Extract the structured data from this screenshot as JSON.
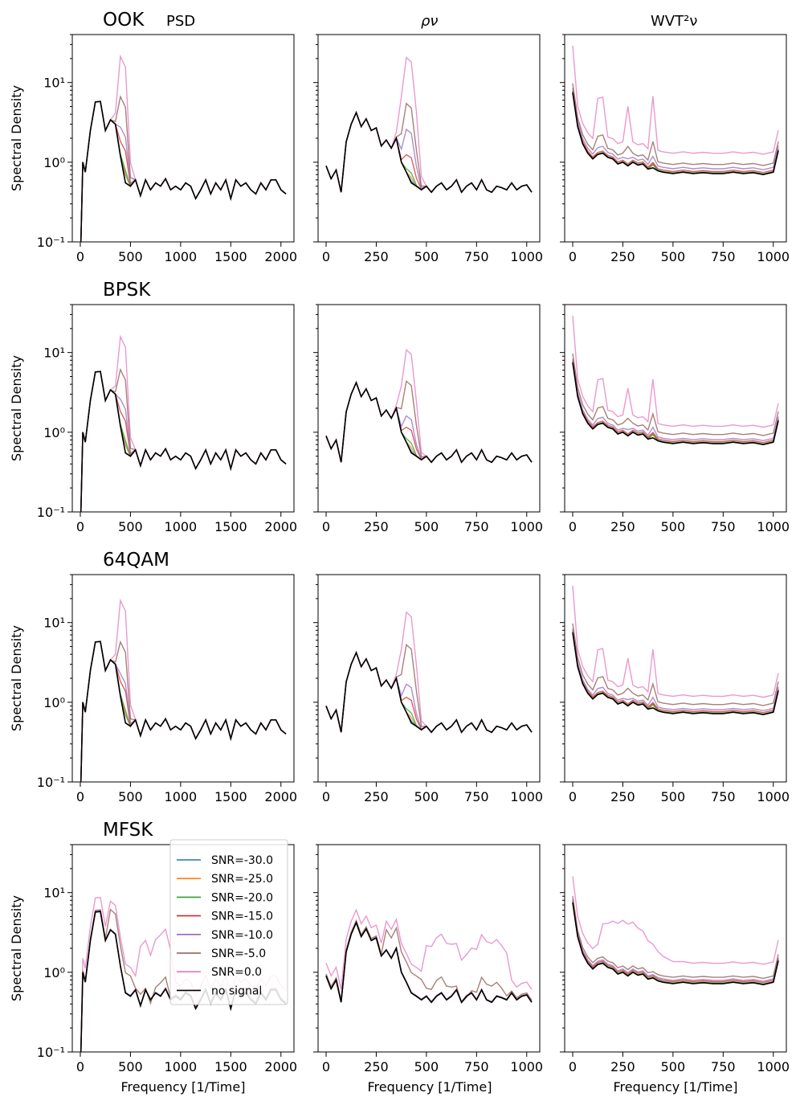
{
  "column_titles": [
    "PSD",
    "ρν",
    "WVT²ν"
  ],
  "row_titles": [
    "OOK",
    "BPSK",
    "64QAM",
    "MFSK"
  ],
  "ylabel": "Spectral Density",
  "xlabel": "Frequency [1/Time]",
  "legend": {
    "placement": "inside, upper-right of bottom-left panel",
    "entries": [
      {
        "label": "SNR=-30.0",
        "color": "#1f77b4"
      },
      {
        "label": "SNR=-25.0",
        "color": "#ff7f0e"
      },
      {
        "label": "SNR=-20.0",
        "color": "#2ca02c"
      },
      {
        "label": "SNR=-15.0",
        "color": "#d62728"
      },
      {
        "label": "SNR=-10.0",
        "color": "#9467bd"
      },
      {
        "label": "SNR=-5.0",
        "color": "#8c564b"
      },
      {
        "label": "SNR=0.0",
        "color": "#e377c2"
      },
      {
        "label": "no signal",
        "color": "#000000"
      }
    ]
  },
  "chart_data": {
    "type": "line",
    "yscale": "log",
    "ylim": [
      0.1,
      40
    ],
    "yticks": [
      {
        "value": 0.1,
        "label": "10⁻¹"
      },
      {
        "value": 1,
        "label": "10⁰"
      },
      {
        "value": 10,
        "label": "10¹"
      }
    ],
    "columns": [
      {
        "key": "PSD",
        "xlim": [
          -80,
          2130
        ],
        "xticks": [
          0,
          500,
          1000,
          1500,
          2000
        ]
      },
      {
        "key": "rho",
        "xlim": [
          -40,
          1065
        ],
        "xticks": [
          0,
          250,
          500,
          750,
          1000
        ]
      },
      {
        "key": "WVT",
        "xlim": [
          -40,
          1065
        ],
        "xticks": [
          0,
          250,
          500,
          750,
          1000
        ]
      }
    ],
    "baseline": {
      "PSD": {
        "x": [
          0,
          25,
          50,
          100,
          150,
          200,
          250,
          300,
          350,
          400,
          450,
          500,
          550,
          600,
          650,
          700,
          750,
          800,
          850,
          900,
          950,
          1000,
          1050,
          1100,
          1150,
          1200,
          1250,
          1300,
          1350,
          1400,
          1450,
          1500,
          1550,
          1600,
          1650,
          1700,
          1750,
          1800,
          1850,
          1900,
          1950,
          2000,
          2050
        ],
        "y": [
          0.001,
          1.0,
          0.75,
          2.5,
          5.7,
          5.8,
          2.5,
          3.4,
          3.0,
          1.2,
          0.55,
          0.5,
          0.6,
          0.38,
          0.6,
          0.45,
          0.55,
          0.5,
          0.62,
          0.45,
          0.5,
          0.45,
          0.55,
          0.5,
          0.35,
          0.45,
          0.6,
          0.4,
          0.55,
          0.45,
          0.6,
          0.35,
          0.6,
          0.5,
          0.55,
          0.45,
          0.4,
          0.55,
          0.45,
          0.6,
          0.6,
          0.45,
          0.4
        ]
      },
      "rho": {
        "x": [
          0,
          25,
          50,
          75,
          100,
          125,
          150,
          175,
          200,
          225,
          250,
          275,
          300,
          325,
          350,
          375,
          400,
          425,
          450,
          475,
          500,
          525,
          550,
          575,
          600,
          625,
          650,
          675,
          700,
          725,
          750,
          775,
          800,
          825,
          850,
          875,
          900,
          925,
          950,
          975,
          1000,
          1025
        ],
        "y": [
          0.9,
          0.62,
          0.8,
          0.42,
          1.8,
          3.0,
          4.2,
          2.8,
          3.5,
          2.5,
          2.7,
          1.6,
          1.9,
          1.5,
          2.0,
          1.0,
          0.75,
          0.55,
          0.5,
          0.45,
          0.5,
          0.42,
          0.5,
          0.55,
          0.45,
          0.5,
          0.6,
          0.42,
          0.5,
          0.55,
          0.45,
          0.6,
          0.45,
          0.42,
          0.5,
          0.48,
          0.45,
          0.55,
          0.45,
          0.5,
          0.52,
          0.42
        ]
      },
      "WVT": {
        "x": [
          0,
          25,
          50,
          75,
          100,
          125,
          150,
          175,
          200,
          225,
          250,
          275,
          300,
          325,
          350,
          375,
          400,
          425,
          450,
          500,
          550,
          600,
          650,
          700,
          750,
          800,
          850,
          900,
          950,
          1000,
          1025
        ],
        "y": [
          7.5,
          2.8,
          1.7,
          1.3,
          1.1,
          1.25,
          1.3,
          1.15,
          1.1,
          0.95,
          1.0,
          0.9,
          1.0,
          0.92,
          0.95,
          0.82,
          0.85,
          0.78,
          0.75,
          0.72,
          0.75,
          0.72,
          0.74,
          0.72,
          0.72,
          0.75,
          0.72,
          0.74,
          0.7,
          0.75,
          1.4
        ]
      }
    },
    "rows": [
      {
        "name": "OOK",
        "PSD": {
          "peak_x": 420,
          "peaks": [
            1.0,
            1.05,
            1.3,
            2.0,
            3.2,
            8.2,
            27
          ]
        },
        "rho": {
          "peak_x": 410,
          "peaks": [
            0.6,
            0.7,
            0.85,
            1.3,
            2.8,
            6.0,
            23
          ]
        },
        "WVT": {
          "offsets": [
            1.0,
            1.0,
            1.02,
            1.06,
            1.15,
            1.3,
            1.8
          ],
          "peak_extra": [
            1,
            1,
            1,
            1,
            1.1,
            1.5,
            4.0
          ]
        }
      },
      {
        "name": "BPSK",
        "PSD": {
          "peak_x": 420,
          "peaks": [
            1.0,
            1.05,
            1.3,
            2.0,
            3.0,
            7.5,
            20
          ]
        },
        "rho": {
          "peak_x": 410,
          "peaks": [
            0.6,
            0.7,
            0.85,
            1.2,
            1.7,
            4.8,
            12
          ]
        },
        "WVT": {
          "offsets": [
            1.0,
            1.0,
            1.02,
            1.06,
            1.12,
            1.3,
            1.65
          ],
          "peak_extra": [
            1,
            1,
            1,
            1,
            1.1,
            1.4,
            3.0
          ]
        }
      },
      {
        "name": "64QAM",
        "PSD": {
          "peak_x": 420,
          "peaks": [
            1.0,
            1.05,
            1.3,
            2.0,
            2.6,
            7.0,
            24
          ]
        },
        "rho": {
          "peak_x": 410,
          "peaks": [
            0.6,
            0.7,
            0.85,
            1.2,
            1.8,
            5.8,
            15
          ]
        },
        "WVT": {
          "offsets": [
            1.0,
            1.0,
            1.02,
            1.06,
            1.12,
            1.3,
            1.65
          ],
          "peak_extra": [
            1,
            1,
            1,
            1,
            1.1,
            1.4,
            3.0
          ]
        }
      },
      {
        "name": "MFSK",
        "PSD": {
          "mfsk": true,
          "band": [
            600,
            900
          ],
          "levels": [
            1.0,
            1.0,
            1.02,
            1.1,
            1.2,
            1.5,
            6.0
          ]
        },
        "rho": {
          "mfsk": true,
          "band": [
            500,
            900
          ],
          "levels": [
            1.0,
            1.0,
            1.02,
            1.1,
            1.2,
            1.6,
            5.5
          ]
        },
        "WVT": {
          "offsets": [
            1.0,
            1.0,
            1.02,
            1.06,
            1.1,
            1.2,
            1.8
          ],
          "bump": true
        }
      }
    ]
  }
}
